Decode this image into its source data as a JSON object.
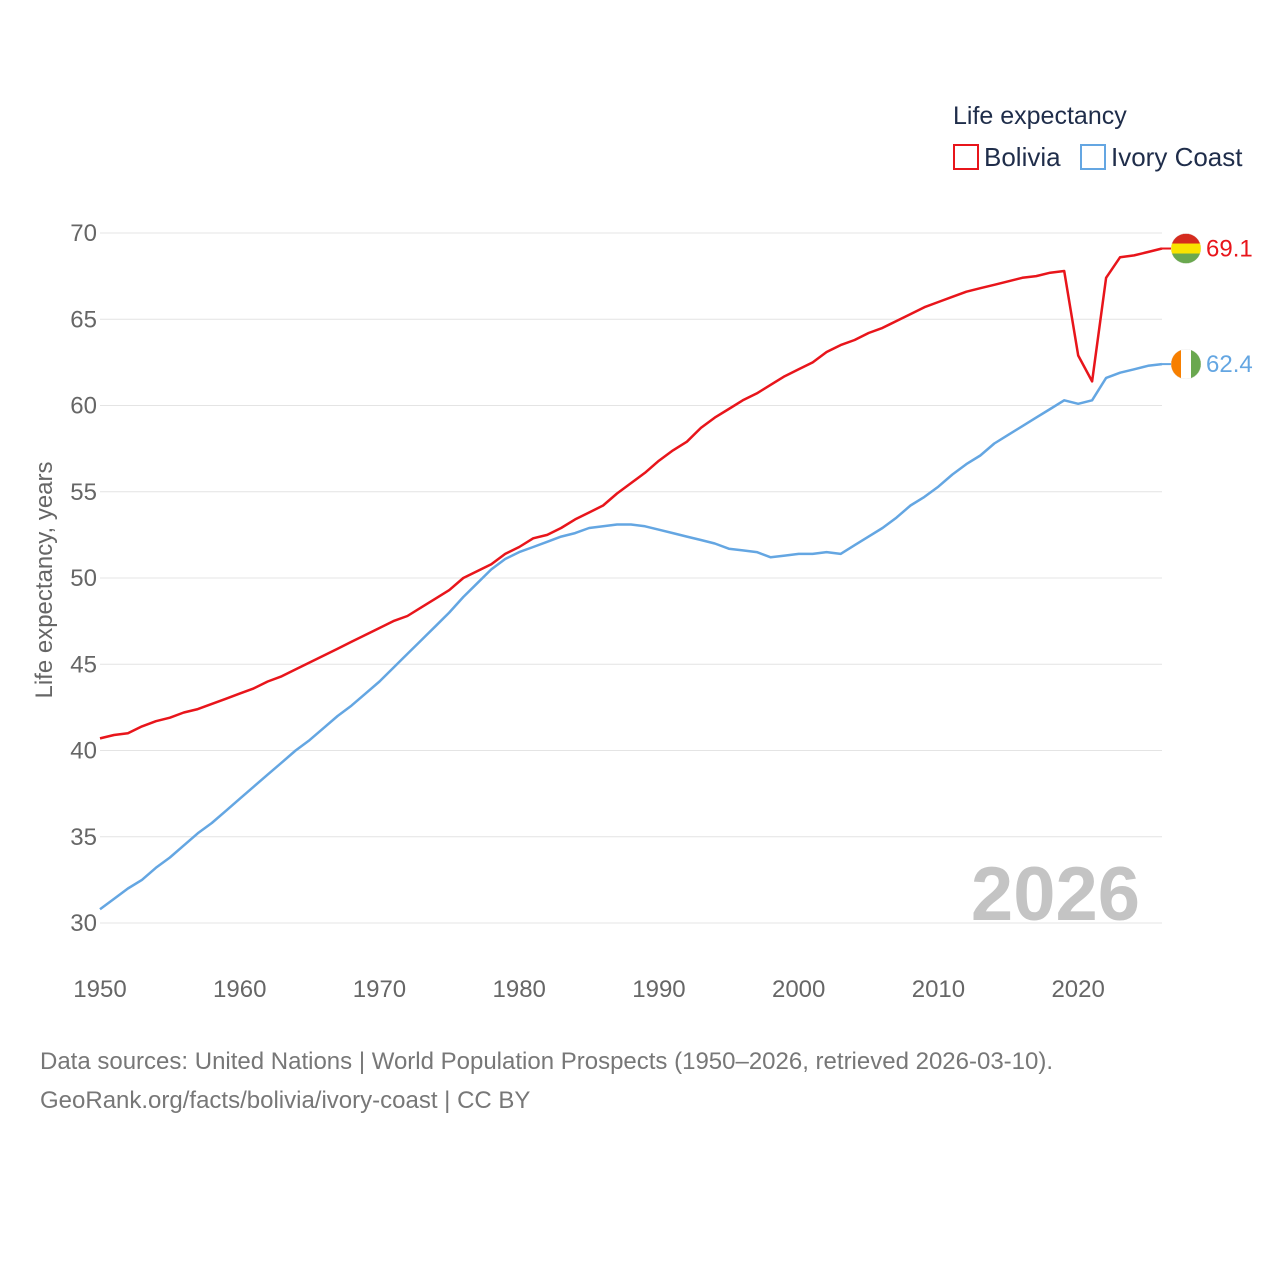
{
  "chart_data": {
    "type": "line",
    "ylabel": "Life expectancy, years",
    "legend_title": "Life expectancy",
    "current_year_label": "2026",
    "ylim": [
      30,
      70
    ],
    "xlim": [
      1950,
      2026
    ],
    "x_ticks": [
      1950,
      1960,
      1970,
      1980,
      1990,
      2000,
      2010,
      2020
    ],
    "y_ticks": [
      30,
      35,
      40,
      45,
      50,
      55,
      60,
      65,
      70
    ],
    "grid": true,
    "legend_position": "top-right",
    "series": [
      {
        "name": "Bolivia",
        "color": "#e8151b",
        "end_label": "69.1",
        "flag_icon": "bolivia-flag-icon",
        "flag_colors": [
          "#d52b1e",
          "#f9e300",
          "#6aa84f"
        ],
        "points": [
          [
            1950,
            40.7
          ],
          [
            1951,
            40.9
          ],
          [
            1952,
            41.0
          ],
          [
            1953,
            41.4
          ],
          [
            1954,
            41.7
          ],
          [
            1955,
            41.9
          ],
          [
            1956,
            42.2
          ],
          [
            1957,
            42.4
          ],
          [
            1958,
            42.7
          ],
          [
            1959,
            43.0
          ],
          [
            1960,
            43.3
          ],
          [
            1961,
            43.6
          ],
          [
            1962,
            44.0
          ],
          [
            1963,
            44.3
          ],
          [
            1964,
            44.7
          ],
          [
            1965,
            45.1
          ],
          [
            1966,
            45.5
          ],
          [
            1967,
            45.9
          ],
          [
            1968,
            46.3
          ],
          [
            1969,
            46.7
          ],
          [
            1970,
            47.1
          ],
          [
            1971,
            47.5
          ],
          [
            1972,
            47.8
          ],
          [
            1973,
            48.3
          ],
          [
            1974,
            48.8
          ],
          [
            1975,
            49.3
          ],
          [
            1976,
            50.0
          ],
          [
            1977,
            50.4
          ],
          [
            1978,
            50.8
          ],
          [
            1979,
            51.4
          ],
          [
            1980,
            51.8
          ],
          [
            1981,
            52.3
          ],
          [
            1982,
            52.5
          ],
          [
            1983,
            52.9
          ],
          [
            1984,
            53.4
          ],
          [
            1985,
            53.8
          ],
          [
            1986,
            54.2
          ],
          [
            1987,
            54.9
          ],
          [
            1988,
            55.5
          ],
          [
            1989,
            56.1
          ],
          [
            1990,
            56.8
          ],
          [
            1991,
            57.4
          ],
          [
            1992,
            57.9
          ],
          [
            1993,
            58.7
          ],
          [
            1994,
            59.3
          ],
          [
            1995,
            59.8
          ],
          [
            1996,
            60.3
          ],
          [
            1997,
            60.7
          ],
          [
            1998,
            61.2
          ],
          [
            1999,
            61.7
          ],
          [
            2000,
            62.1
          ],
          [
            2001,
            62.5
          ],
          [
            2002,
            63.1
          ],
          [
            2003,
            63.5
          ],
          [
            2004,
            63.8
          ],
          [
            2005,
            64.2
          ],
          [
            2006,
            64.5
          ],
          [
            2007,
            64.9
          ],
          [
            2008,
            65.3
          ],
          [
            2009,
            65.7
          ],
          [
            2010,
            66.0
          ],
          [
            2011,
            66.3
          ],
          [
            2012,
            66.6
          ],
          [
            2013,
            66.8
          ],
          [
            2014,
            67.0
          ],
          [
            2015,
            67.2
          ],
          [
            2016,
            67.4
          ],
          [
            2017,
            67.5
          ],
          [
            2018,
            67.7
          ],
          [
            2019,
            67.8
          ],
          [
            2020,
            62.9
          ],
          [
            2021,
            61.4
          ],
          [
            2022,
            67.4
          ],
          [
            2023,
            68.6
          ],
          [
            2024,
            68.7
          ],
          [
            2025,
            68.9
          ],
          [
            2026,
            69.1
          ]
        ]
      },
      {
        "name": "Ivory Coast",
        "color": "#64a6e2",
        "end_label": "62.4",
        "flag_icon": "ivory-coast-flag-icon",
        "flag_colors": [
          "#f77f00",
          "#ffffff",
          "#6aa84f"
        ],
        "points": [
          [
            1950,
            30.8
          ],
          [
            1951,
            31.4
          ],
          [
            1952,
            32.0
          ],
          [
            1953,
            32.5
          ],
          [
            1954,
            33.2
          ],
          [
            1955,
            33.8
          ],
          [
            1956,
            34.5
          ],
          [
            1957,
            35.2
          ],
          [
            1958,
            35.8
          ],
          [
            1959,
            36.5
          ],
          [
            1960,
            37.2
          ],
          [
            1961,
            37.9
          ],
          [
            1962,
            38.6
          ],
          [
            1963,
            39.3
          ],
          [
            1964,
            40.0
          ],
          [
            1965,
            40.6
          ],
          [
            1966,
            41.3
          ],
          [
            1967,
            42.0
          ],
          [
            1968,
            42.6
          ],
          [
            1969,
            43.3
          ],
          [
            1970,
            44.0
          ],
          [
            1971,
            44.8
          ],
          [
            1972,
            45.6
          ],
          [
            1973,
            46.4
          ],
          [
            1974,
            47.2
          ],
          [
            1975,
            48.0
          ],
          [
            1976,
            48.9
          ],
          [
            1977,
            49.7
          ],
          [
            1978,
            50.5
          ],
          [
            1979,
            51.1
          ],
          [
            1980,
            51.5
          ],
          [
            1981,
            51.8
          ],
          [
            1982,
            52.1
          ],
          [
            1983,
            52.4
          ],
          [
            1984,
            52.6
          ],
          [
            1985,
            52.9
          ],
          [
            1986,
            53.0
          ],
          [
            1987,
            53.1
          ],
          [
            1988,
            53.1
          ],
          [
            1989,
            53.0
          ],
          [
            1990,
            52.8
          ],
          [
            1991,
            52.6
          ],
          [
            1992,
            52.4
          ],
          [
            1993,
            52.2
          ],
          [
            1994,
            52.0
          ],
          [
            1995,
            51.7
          ],
          [
            1996,
            51.6
          ],
          [
            1997,
            51.5
          ],
          [
            1998,
            51.2
          ],
          [
            1999,
            51.3
          ],
          [
            2000,
            51.4
          ],
          [
            2001,
            51.4
          ],
          [
            2002,
            51.5
          ],
          [
            2003,
            51.4
          ],
          [
            2004,
            51.9
          ],
          [
            2005,
            52.4
          ],
          [
            2006,
            52.9
          ],
          [
            2007,
            53.5
          ],
          [
            2008,
            54.2
          ],
          [
            2009,
            54.7
          ],
          [
            2010,
            55.3
          ],
          [
            2011,
            56.0
          ],
          [
            2012,
            56.6
          ],
          [
            2013,
            57.1
          ],
          [
            2014,
            57.8
          ],
          [
            2015,
            58.3
          ],
          [
            2016,
            58.8
          ],
          [
            2017,
            59.3
          ],
          [
            2018,
            59.8
          ],
          [
            2019,
            60.3
          ],
          [
            2020,
            60.1
          ],
          [
            2021,
            60.3
          ],
          [
            2022,
            61.6
          ],
          [
            2023,
            61.9
          ],
          [
            2024,
            62.1
          ],
          [
            2025,
            62.3
          ],
          [
            2026,
            62.4
          ]
        ]
      }
    ]
  },
  "footer": {
    "source_line": "Data sources: United Nations | World Population Prospects (1950–2026, retrieved 2026-03-10).",
    "credit_line": "GeoRank.org/facts/bolivia/ivory-coast | CC BY"
  }
}
